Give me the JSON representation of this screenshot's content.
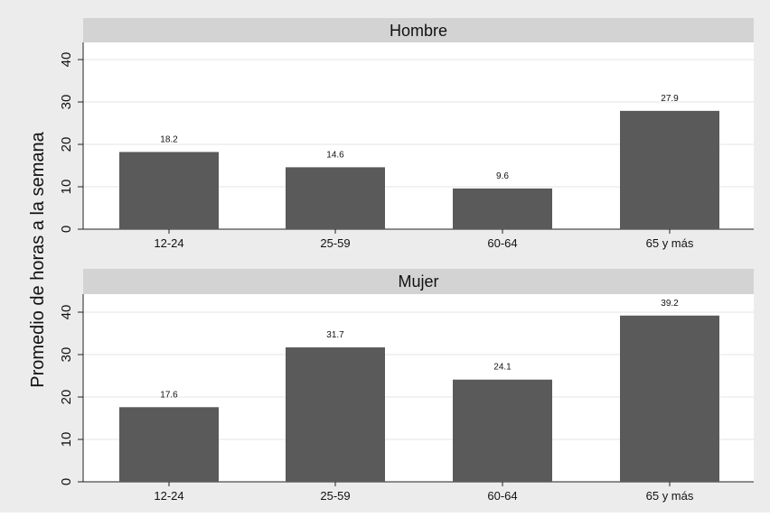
{
  "chart_data": {
    "type": "bar",
    "ylabel": "Promedio de horas a la semana",
    "ylim": [
      0,
      40
    ],
    "yticks": [
      0,
      10,
      20,
      30,
      40
    ],
    "grid": true,
    "categories": [
      "12-24",
      "25-59",
      "60-64",
      "65 y más"
    ],
    "colors": {
      "bar": "#5a5a5a",
      "strip": "#d3d3d3",
      "outer": "#ececec",
      "grid": "#e6e6e6"
    },
    "panels": [
      {
        "title": "Hombre",
        "values": [
          18.2,
          14.6,
          9.6,
          27.9
        ],
        "value_labels": [
          "18.2",
          "14.6",
          "9.6",
          "27.9"
        ]
      },
      {
        "title": "Mujer",
        "values": [
          17.6,
          31.7,
          24.1,
          39.2
        ],
        "value_labels": [
          "17.6",
          "31.7",
          "24.1",
          "39.2"
        ]
      }
    ]
  }
}
